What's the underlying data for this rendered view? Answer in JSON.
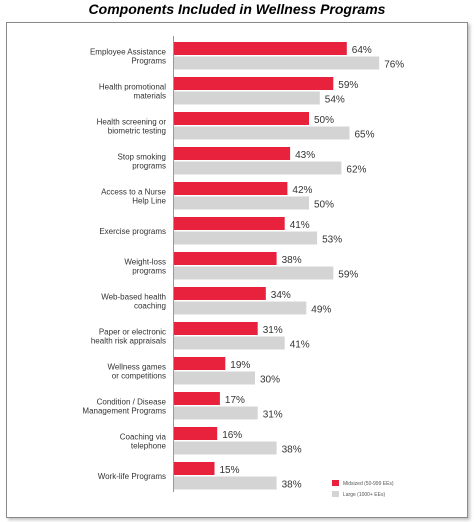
{
  "title": "Components Included in Wellness Programs",
  "chart_data": {
    "type": "bar",
    "orientation": "horizontal",
    "categories": [
      [
        "Employee Assistance",
        "Programs"
      ],
      [
        "Health promotional",
        "materials"
      ],
      [
        "Health screening or",
        "biometric testing"
      ],
      [
        "Stop smoking",
        "programs"
      ],
      [
        "Access to a Nurse",
        "Help Line"
      ],
      [
        "Exercise programs"
      ],
      [
        "Weight-loss",
        "programs"
      ],
      [
        "Web-based health",
        "coaching"
      ],
      [
        "Paper or electronic",
        "health risk appraisals"
      ],
      [
        "Wellness games",
        "or competitions"
      ],
      [
        "Condition / Disease",
        "Management Programs"
      ],
      [
        "Coaching via",
        "telephone"
      ],
      [
        "Work-life Programs"
      ]
    ],
    "series": [
      {
        "name": "Midsized (50-999 EEs)",
        "color": "#e8213d",
        "values": [
          64,
          59,
          50,
          43,
          42,
          41,
          38,
          34,
          31,
          19,
          17,
          16,
          15
        ]
      },
      {
        "name": "Large (1000+ EEs)",
        "color": "#d4d4d4",
        "values": [
          76,
          54,
          65,
          62,
          50,
          53,
          59,
          49,
          41,
          30,
          31,
          38,
          38
        ]
      }
    ],
    "value_suffix": "%",
    "xlim": [
      0,
      100
    ],
    "legend": "bottom-right",
    "grid": false
  }
}
